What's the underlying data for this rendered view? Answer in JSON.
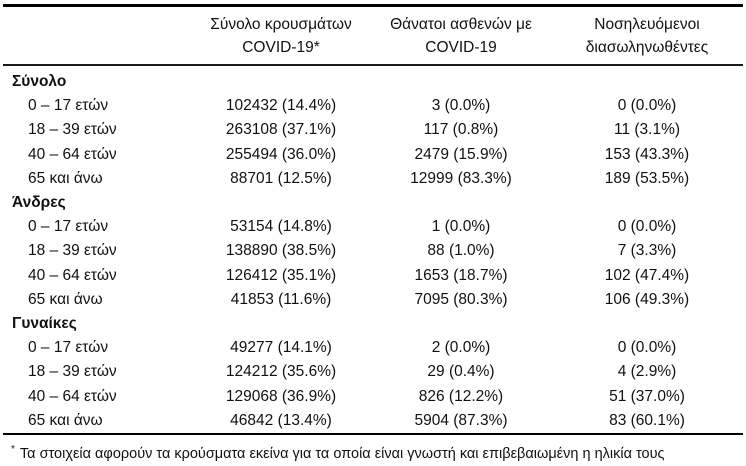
{
  "table": {
    "column_headers": [
      {
        "line1": "Σύνολο κρουσμάτων",
        "line2": "COVID-19*"
      },
      {
        "line1": "Θάνατοι ασθενών με",
        "line2": "COVID-19"
      },
      {
        "line1": "Νοσηλευόμενοι",
        "line2": "διασωληνωθέντες"
      }
    ],
    "sections": [
      {
        "label": "Σύνολο",
        "rows": [
          {
            "label": "0 – 17 ετών",
            "cases": "102432 (14.4%)",
            "deaths": "3 (0.0%)",
            "intubated": "0 (0.0%)"
          },
          {
            "label": "18 – 39 ετών",
            "cases": "263108 (37.1%)",
            "deaths": "117 (0.8%)",
            "intubated": "11 (3.1%)"
          },
          {
            "label": "40 – 64 ετών",
            "cases": "255494 (36.0%)",
            "deaths": "2479 (15.9%)",
            "intubated": "153 (43.3%)"
          },
          {
            "label": "65 και άνω",
            "cases": "88701 (12.5%)",
            "deaths": "12999 (83.3%)",
            "intubated": "189 (53.5%)"
          }
        ]
      },
      {
        "label": "Άνδρες",
        "rows": [
          {
            "label": "0 – 17 ετών",
            "cases": "53154 (14.8%)",
            "deaths": "1 (0.0%)",
            "intubated": "0 (0.0%)"
          },
          {
            "label": "18 – 39 ετών",
            "cases": "138890 (38.5%)",
            "deaths": "88 (1.0%)",
            "intubated": "7 (3.3%)"
          },
          {
            "label": "40 – 64 ετών",
            "cases": "126412 (35.1%)",
            "deaths": "1653 (18.7%)",
            "intubated": "102 (47.4%)"
          },
          {
            "label": "65 και άνω",
            "cases": "41853 (11.6%)",
            "deaths": "7095 (80.3%)",
            "intubated": "106 (49.3%)"
          }
        ]
      },
      {
        "label": "Γυναίκες",
        "rows": [
          {
            "label": "0 – 17 ετών",
            "cases": "49277 (14.1%)",
            "deaths": "2 (0.0%)",
            "intubated": "0 (0.0%)"
          },
          {
            "label": "18 – 39 ετών",
            "cases": "124212 (35.6%)",
            "deaths": "29 (0.4%)",
            "intubated": "4 (2.9%)"
          },
          {
            "label": "40 – 64 ετών",
            "cases": "129068 (36.9%)",
            "deaths": "826 (12.2%)",
            "intubated": "51 (37.0%)"
          },
          {
            "label": "65 και άνω",
            "cases": "46842 (13.4%)",
            "deaths": "5904 (87.3%)",
            "intubated": "83 (60.1%)"
          }
        ]
      }
    ]
  },
  "footnote": {
    "marker": "*",
    "text": "Τα στοιχεία αφορούν τα κρούσματα εκείνα για τα οποία είναι γνωστή και επιβεβαιωμένη η ηλικία τους"
  },
  "colors": {
    "text": "#111111",
    "rule": "#000000",
    "background": "#ffffff"
  }
}
